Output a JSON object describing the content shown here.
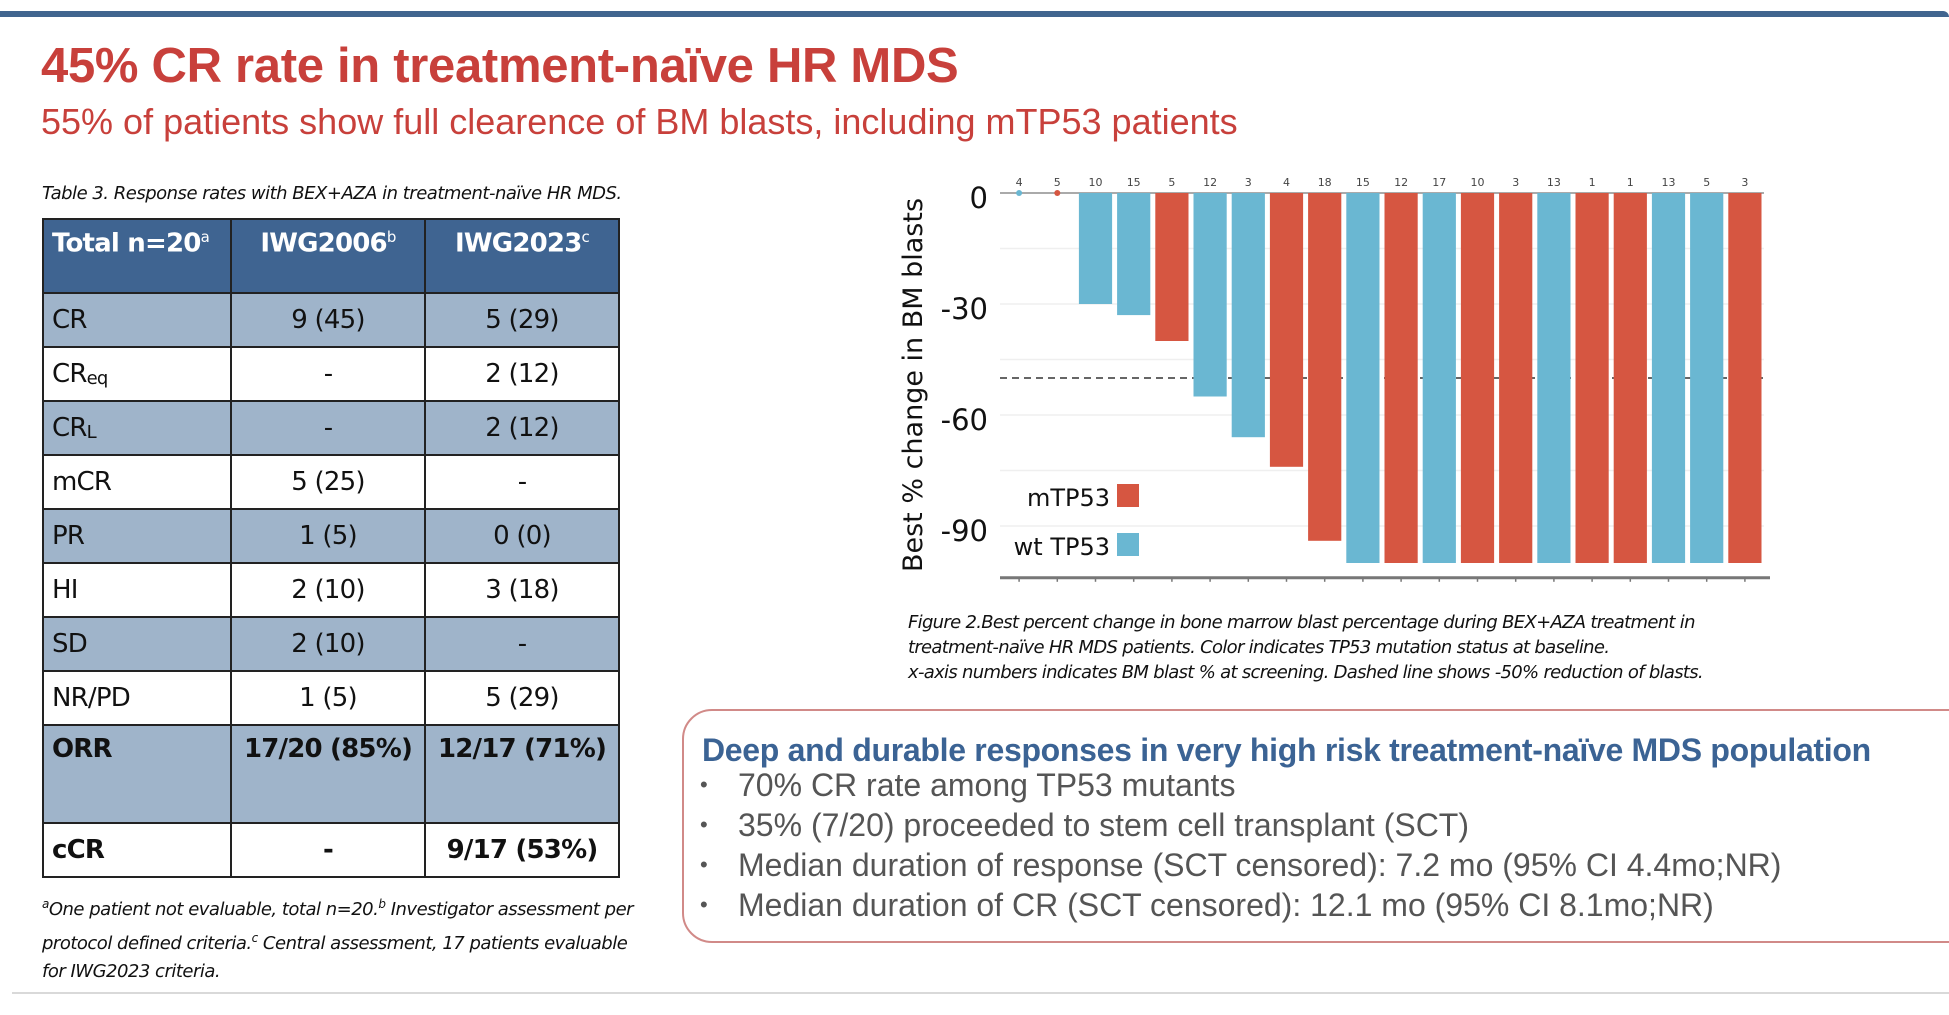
{
  "slide": {
    "title": "45% CR rate in treatment-naïve HR MDS",
    "subtitle": "55% of patients show full clearence of BM blasts, including mTP53 patients"
  },
  "table": {
    "caption": "Table 3. Response rates with BEX+AZA in treatment-naïve HR MDS.",
    "headers": [
      {
        "label": "Total n=20",
        "sup": "a"
      },
      {
        "label": "IWG2006",
        "sup": "b"
      },
      {
        "label": "IWG2023",
        "sup": "c"
      }
    ],
    "rows": [
      {
        "label": "CR",
        "sub": "",
        "iwg2006": "9 (45)",
        "iwg2023": "5 (29)"
      },
      {
        "label": "CR",
        "sub": "eq",
        "iwg2006": "-",
        "iwg2023": "2 (12)"
      },
      {
        "label": "CR",
        "sub": "L",
        "iwg2006": "-",
        "iwg2023": "2 (12)"
      },
      {
        "label": "mCR",
        "sub": "",
        "iwg2006": "5 (25)",
        "iwg2023": "-"
      },
      {
        "label": "PR",
        "sub": "",
        "iwg2006": "1 (5)",
        "iwg2023": "0 (0)"
      },
      {
        "label": "HI",
        "sub": "",
        "iwg2006": "2 (10)",
        "iwg2023": "3 (18)"
      },
      {
        "label": "SD",
        "sub": "",
        "iwg2006": "2 (10)",
        "iwg2023": "-"
      },
      {
        "label": "NR/PD",
        "sub": "",
        "iwg2006": "1 (5)",
        "iwg2023": "5 (29)"
      },
      {
        "label": "ORR",
        "sub": "",
        "iwg2006": "17/20 (85%)",
        "iwg2023": "12/17 (71%)"
      },
      {
        "label": "cCR",
        "sub": "",
        "iwg2006": "-",
        "iwg2023": "9/17 (53%)"
      }
    ],
    "footnote": [
      {
        "sup": "a",
        "text": "One patient not evaluable, total n=20."
      },
      {
        "sup": "b",
        "text": " Investigator assessment per protocol defined criteria."
      },
      {
        "sup": "c",
        "text": " Central assessment, 17 patients evaluable for IWG2023 criteria."
      }
    ]
  },
  "chart_data": {
    "type": "bar",
    "title": "",
    "xlabel": "",
    "ylabel": "Best % change in BM blasts",
    "ylim": [
      -104,
      0
    ],
    "yticks": [
      0,
      -30,
      -60,
      -90
    ],
    "grid": true,
    "reference_line": {
      "y": -50,
      "style": "dashed"
    },
    "legend_position": "bottom-left",
    "categories": [
      "4",
      "5",
      "10",
      "15",
      "5",
      "12",
      "3",
      "4",
      "18",
      "15",
      "12",
      "17",
      "10",
      "3",
      "13",
      "1",
      "1",
      "13",
      "5",
      "3"
    ],
    "values": [
      0,
      0,
      -30,
      -33,
      -40,
      -55,
      -66,
      -74,
      -94,
      -100,
      -100,
      -100,
      -100,
      -100,
      -100,
      -100,
      -100,
      -100,
      -100,
      -100
    ],
    "groups": [
      "wt TP53",
      "mTP53",
      "wt TP53",
      "wt TP53",
      "mTP53",
      "wt TP53",
      "wt TP53",
      "mTP53",
      "mTP53",
      "wt TP53",
      "mTP53",
      "wt TP53",
      "mTP53",
      "mTP53",
      "wt TP53",
      "mTP53",
      "mTP53",
      "wt TP53",
      "wt TP53",
      "mTP53"
    ],
    "series": [
      {
        "name": "mTP53",
        "color": "#d65641"
      },
      {
        "name": "wt TP53",
        "color": "#6ab7d2"
      }
    ]
  },
  "figure_caption": [
    "Figure 2.Best percent change in bone marrow blast percentage during BEX+AZA treatment in",
    "treatment-naïve HR MDS patients. Color indicates TP53 mutation status at baseline.",
    "x-axis numbers indicates BM blast % at screening. Dashed line shows -50% reduction of blasts."
  ],
  "callout": {
    "title": "Deep and durable responses in very high risk treatment-naïve MDS population",
    "bullets": [
      "70% CR rate among TP53 mutants",
      "35% (7/20) proceeded to stem cell transplant (SCT)",
      "Median duration of response (SCT censored): 7.2 mo (95% CI 4.4mo;NR)",
      "Median duration of CR (SCT censored): 12.1 mo (95% CI 8.1mo;NR)"
    ],
    "bullet_glyph": "•"
  },
  "colors": {
    "title_red": "#c8403b",
    "header_blue": "#3f6491",
    "row_shade": "#9fb4ca",
    "callout_title_blue": "#3b6394"
  }
}
